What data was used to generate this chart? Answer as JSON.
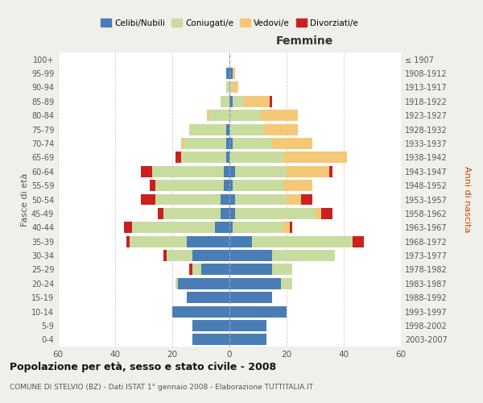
{
  "age_groups": [
    "0-4",
    "5-9",
    "10-14",
    "15-19",
    "20-24",
    "25-29",
    "30-34",
    "35-39",
    "40-44",
    "45-49",
    "50-54",
    "55-59",
    "60-64",
    "65-69",
    "70-74",
    "75-79",
    "80-84",
    "85-89",
    "90-94",
    "95-99",
    "100+"
  ],
  "birth_years": [
    "2003-2007",
    "1998-2002",
    "1993-1997",
    "1988-1992",
    "1983-1987",
    "1978-1982",
    "1973-1977",
    "1968-1972",
    "1963-1967",
    "1958-1962",
    "1953-1957",
    "1948-1952",
    "1943-1947",
    "1938-1942",
    "1933-1937",
    "1928-1932",
    "1923-1927",
    "1918-1922",
    "1913-1917",
    "1908-1912",
    "≤ 1907"
  ],
  "colors": {
    "celibi": "#4a7db5",
    "coniugati": "#c8dca0",
    "vedovi": "#f5c878",
    "divorziati": "#cc2020"
  },
  "males": {
    "celibi": [
      13,
      13,
      20,
      15,
      18,
      10,
      13,
      15,
      5,
      3,
      3,
      2,
      2,
      1,
      1,
      1,
      0,
      0,
      0,
      1,
      0
    ],
    "coniugati": [
      0,
      0,
      0,
      0,
      1,
      3,
      9,
      20,
      29,
      20,
      23,
      24,
      25,
      16,
      15,
      13,
      7,
      3,
      1,
      0,
      0
    ],
    "vedovi": [
      0,
      0,
      0,
      0,
      0,
      0,
      0,
      0,
      0,
      0,
      0,
      0,
      0,
      0,
      1,
      0,
      1,
      0,
      0,
      0,
      0
    ],
    "divorziati": [
      0,
      0,
      0,
      0,
      0,
      1,
      1,
      1,
      3,
      2,
      5,
      2,
      4,
      2,
      0,
      0,
      0,
      0,
      0,
      0,
      0
    ]
  },
  "females": {
    "nubili": [
      13,
      13,
      20,
      15,
      18,
      15,
      15,
      8,
      1,
      2,
      2,
      1,
      2,
      0,
      1,
      0,
      0,
      1,
      0,
      1,
      0
    ],
    "coniugate": [
      0,
      0,
      0,
      0,
      4,
      7,
      22,
      35,
      18,
      28,
      18,
      18,
      18,
      19,
      14,
      12,
      11,
      4,
      1,
      0,
      0
    ],
    "vedove": [
      0,
      0,
      0,
      0,
      0,
      0,
      0,
      0,
      2,
      2,
      5,
      10,
      15,
      22,
      14,
      12,
      13,
      9,
      2,
      1,
      0
    ],
    "divorziate": [
      0,
      0,
      0,
      0,
      0,
      0,
      0,
      4,
      1,
      4,
      4,
      0,
      1,
      0,
      0,
      0,
      0,
      1,
      0,
      0,
      0
    ]
  },
  "xlim": 60,
  "title": "Popolazione per età, sesso e stato civile - 2008",
  "subtitle": "COMUNE DI STELVIO (BZ) - Dati ISTAT 1° gennaio 2008 - Elaborazione TUTTITALIA.IT",
  "xlabel_right": "Femmine",
  "ylabel_left": "Fasce di età",
  "ylabel_right": "Anni di nascita",
  "legend_labels": [
    "Celibi/Nubili",
    "Coniugati/e",
    "Vedovi/e",
    "Divorziati/e"
  ],
  "bg_color": "#f0f0eb",
  "plot_bg": "#ffffff"
}
